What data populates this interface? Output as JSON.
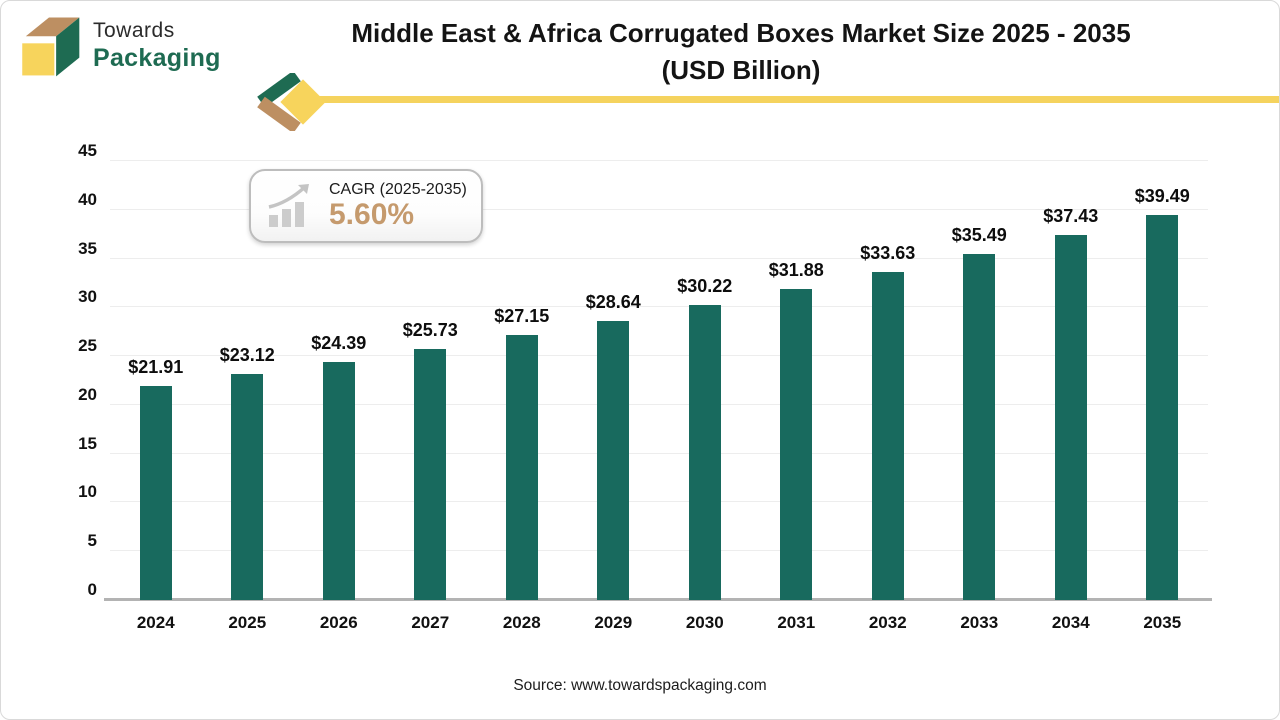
{
  "brand": {
    "name_top": "Towards",
    "name_bottom": "Packaging"
  },
  "title": {
    "line1": "Middle East & Africa Corrugated Boxes Market Size 2025 - 2035",
    "line2": "(USD Billion)"
  },
  "cagr": {
    "label": "CAGR (2025-2035)",
    "value": "5.60%"
  },
  "source": "Source: www.towardspackaging.com",
  "colors": {
    "bar": "#186a5e",
    "accent_yellow": "#f5d35e",
    "accent_tan": "#bd8f62",
    "brand_green": "#1e6b52",
    "cagr_value_color": "#c59a6d",
    "gridline": "#ededed",
    "baseline": "#b3b3b3"
  },
  "chart_data": {
    "type": "bar",
    "title": "Middle East & Africa Corrugated Boxes Market Size 2025 - 2035 (USD Billion)",
    "categories": [
      "2024",
      "2025",
      "2026",
      "2027",
      "2028",
      "2029",
      "2030",
      "2031",
      "2032",
      "2033",
      "2034",
      "2035"
    ],
    "values": [
      21.91,
      23.12,
      24.39,
      25.73,
      27.15,
      28.64,
      30.22,
      31.88,
      33.63,
      35.49,
      37.43,
      39.49
    ],
    "value_labels": [
      "$21.91",
      "$23.12",
      "$24.39",
      "$25.73",
      "$27.15",
      "$28.64",
      "$30.22",
      "$31.88",
      "$33.63",
      "$35.49",
      "$37.43",
      "$39.49"
    ],
    "xlabel": "",
    "ylabel": "",
    "ylim": [
      0,
      45
    ],
    "yticks": [
      0,
      5,
      10,
      15,
      20,
      25,
      30,
      35,
      40,
      45
    ],
    "grid": true,
    "legend": "none",
    "bar_color": "#186a5e"
  }
}
